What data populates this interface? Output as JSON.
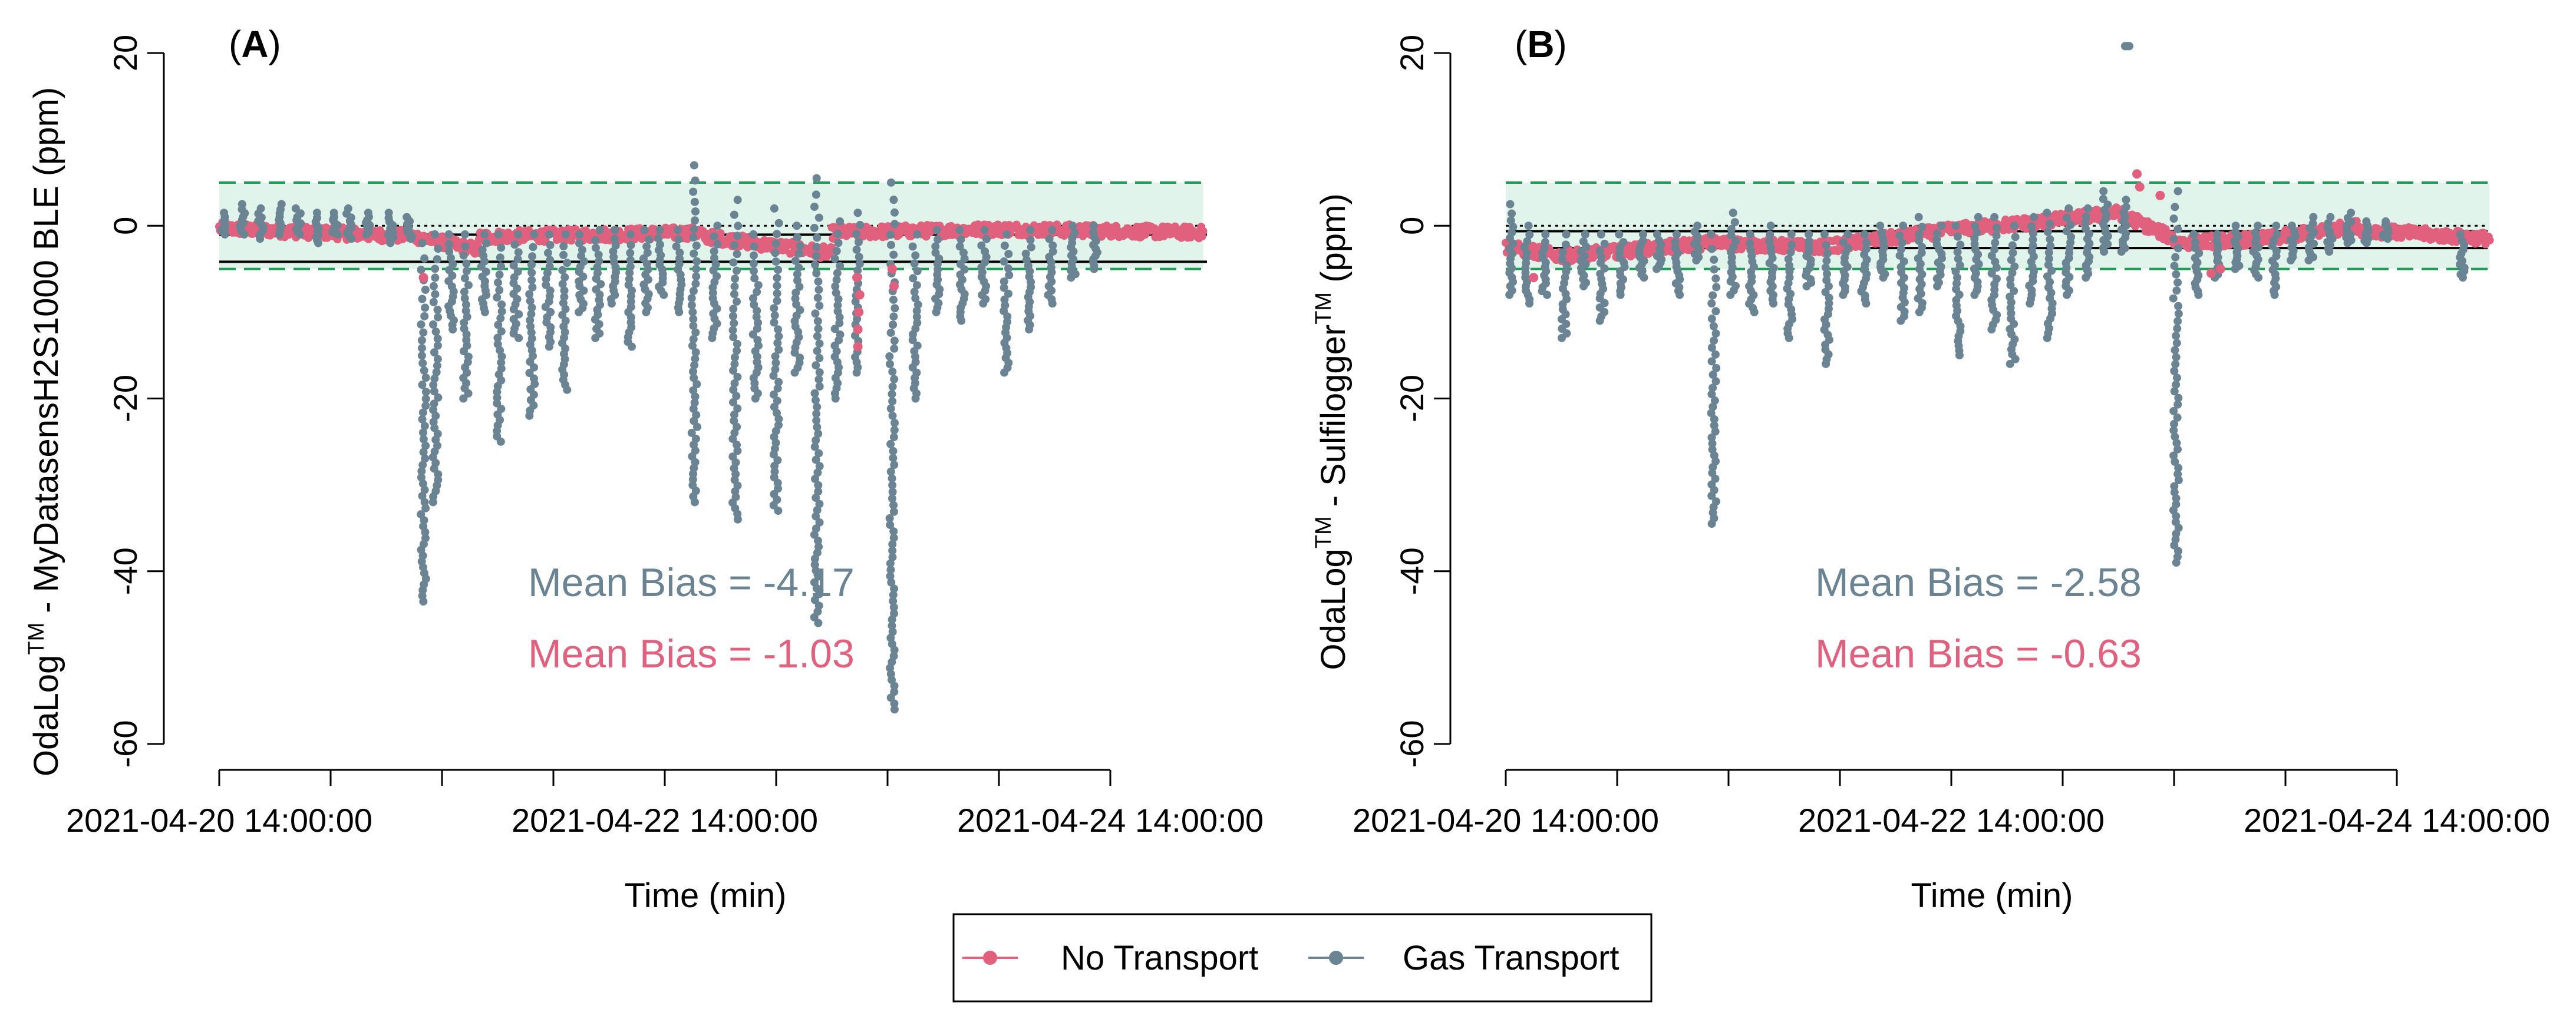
{
  "colors": {
    "no_transport": "#E0607E",
    "gas_transport": "#6B8493",
    "band_fill": "#E1F4EC",
    "band_line": "#1E9E55"
  },
  "legend": {
    "items": [
      {
        "label": "No Transport",
        "color": "#E0607E"
      },
      {
        "label": "Gas Transport",
        "color": "#6B8493"
      }
    ]
  },
  "chart_data": [
    {
      "type": "scatter",
      "panel_letter": "A",
      "ylabel_prefix": "OdaLog",
      "ylabel_sup": "TM",
      "ylabel_suffix": " - MyDatasensH2S1000 BLE (ppm)",
      "xlabel": "Time (min)",
      "x_range_hours": [
        0,
        96
      ],
      "x_ticks": [
        0,
        12,
        24,
        36,
        48,
        60,
        72,
        84,
        96
      ],
      "x_tick_labels": [
        {
          "at": 0,
          "text": "2021-04-20 14:00:00"
        },
        {
          "at": 48,
          "text": "2021-04-22 14:00:00"
        },
        {
          "at": 96,
          "text": "2021-04-24 14:00:00"
        }
      ],
      "ylim": [
        -60,
        20
      ],
      "y_ticks": [
        -60,
        -40,
        -20,
        0,
        20
      ],
      "data_range_hours": [
        0,
        106
      ],
      "band": [
        -5,
        5
      ],
      "zero_line": 0,
      "mean_lines": [
        -1.03,
        -4.17
      ],
      "annotations": [
        {
          "text": "Mean Bias = -4.17",
          "series": "gas_transport"
        },
        {
          "text": "Mean Bias = -1.03",
          "series": "no_transport"
        }
      ],
      "series": [
        {
          "name": "No Transport",
          "color_key": "no_transport",
          "segments": [
            {
              "x0": 0,
              "x1": 20,
              "y0": -0.3,
              "y1": -1.2
            },
            {
              "x0": 20,
              "x1": 28,
              "y0": -1.0,
              "y1": -2.8
            },
            {
              "x0": 28,
              "x1": 52,
              "y0": -1.3,
              "y1": -0.8
            },
            {
              "x0": 52,
              "x1": 66,
              "y0": -1.2,
              "y1": -3.2
            },
            {
              "x0": 66,
              "x1": 85,
              "y0": -0.8,
              "y1": -0.4
            },
            {
              "x0": 85,
              "x1": 106,
              "y0": -0.4,
              "y1": -0.8
            }
          ],
          "points": [
            {
              "x": 68.8,
              "y": -14
            },
            {
              "x": 68.8,
              "y": -12
            },
            {
              "x": 68.9,
              "y": -10
            },
            {
              "x": 69.0,
              "y": -8
            },
            {
              "x": 68.7,
              "y": -6
            },
            {
              "x": 72.5,
              "y": -5
            },
            {
              "x": 72.7,
              "y": -7
            },
            {
              "x": 22.0,
              "y": -6
            }
          ]
        },
        {
          "name": "Gas Transport",
          "color_key": "gas_transport",
          "clusters": [
            {
              "x": 0.5,
              "min": -1,
              "max": 1.5
            },
            {
              "x": 2.5,
              "min": -1,
              "max": 2.5
            },
            {
              "x": 4.5,
              "min": -1.5,
              "max": 2
            },
            {
              "x": 6.5,
              "min": -1,
              "max": 2.5
            },
            {
              "x": 8.5,
              "min": -1,
              "max": 2
            },
            {
              "x": 10.5,
              "min": -2,
              "max": 1.5
            },
            {
              "x": 12.5,
              "min": -1,
              "max": 1.5
            },
            {
              "x": 14,
              "min": -1.5,
              "max": 2
            },
            {
              "x": 16,
              "min": -1,
              "max": 1.5
            },
            {
              "x": 18.5,
              "min": -2,
              "max": 1.5
            },
            {
              "x": 20.5,
              "min": -1.5,
              "max": 1
            },
            {
              "x": 22,
              "min": -43.5,
              "max": -2
            },
            {
              "x": 23.3,
              "min": -32,
              "max": -1
            },
            {
              "x": 25,
              "min": -12,
              "max": -1
            },
            {
              "x": 26.6,
              "min": -20,
              "max": -1
            },
            {
              "x": 28.5,
              "min": -10,
              "max": -1
            },
            {
              "x": 30.2,
              "min": -25,
              "max": -1
            },
            {
              "x": 32,
              "min": -13,
              "max": -1
            },
            {
              "x": 33.7,
              "min": -22,
              "max": -1
            },
            {
              "x": 35.4,
              "min": -14,
              "max": -1
            },
            {
              "x": 37.2,
              "min": -19,
              "max": -1
            },
            {
              "x": 39,
              "min": -10,
              "max": -1
            },
            {
              "x": 40.8,
              "min": -13,
              "max": -0.5
            },
            {
              "x": 42.5,
              "min": -9,
              "max": -0.5
            },
            {
              "x": 44.2,
              "min": -14,
              "max": -1
            },
            {
              "x": 46,
              "min": -10,
              "max": -0.5
            },
            {
              "x": 47.6,
              "min": -8,
              "max": -0.5
            },
            {
              "x": 49.5,
              "min": -10,
              "max": -0.5
            },
            {
              "x": 51.2,
              "min": -32,
              "max": 7
            },
            {
              "x": 53.4,
              "min": -13,
              "max": 0
            },
            {
              "x": 55.6,
              "min": -34,
              "max": 3
            },
            {
              "x": 57.8,
              "min": -20,
              "max": -1
            },
            {
              "x": 60,
              "min": -33,
              "max": 2
            },
            {
              "x": 62.3,
              "min": -17,
              "max": 0
            },
            {
              "x": 64.4,
              "min": -46,
              "max": 5.5
            },
            {
              "x": 66.6,
              "min": -20,
              "max": 0.5
            },
            {
              "x": 68.8,
              "min": -17,
              "max": 1.5
            },
            {
              "x": 72.5,
              "min": -56,
              "max": 5
            },
            {
              "x": 75,
              "min": -20,
              "max": -1
            },
            {
              "x": 77.4,
              "min": -10,
              "max": -0.5
            },
            {
              "x": 80,
              "min": -11,
              "max": -0.5
            },
            {
              "x": 82.4,
              "min": -9,
              "max": -0.5
            },
            {
              "x": 84.8,
              "min": -17,
              "max": -1
            },
            {
              "x": 87.2,
              "min": -12,
              "max": -0.5
            },
            {
              "x": 89.6,
              "min": -9,
              "max": -0.5
            },
            {
              "x": 92,
              "min": -6,
              "max": 0
            },
            {
              "x": 94.4,
              "min": -5,
              "max": 0
            }
          ]
        }
      ]
    },
    {
      "type": "scatter",
      "panel_letter": "B",
      "ylabel_prefix": "OdaLog",
      "ylabel_sup": "TM",
      "ylabel_suffix": " - Sulfilogger",
      "ylabel_sup2": "TM",
      "ylabel_suffix2": " (ppm)",
      "xlabel": "Time (min)",
      "x_range_hours": [
        0,
        96
      ],
      "x_ticks": [
        0,
        12,
        24,
        36,
        48,
        60,
        72,
        84,
        96
      ],
      "x_tick_labels": [
        {
          "at": 0,
          "text": "2021-04-20 14:00:00"
        },
        {
          "at": 48,
          "text": "2021-04-22 14:00:00"
        },
        {
          "at": 96,
          "text": "2021-04-24 14:00:00"
        }
      ],
      "ylim": [
        -60,
        20
      ],
      "y_ticks": [
        -60,
        -40,
        -20,
        0,
        20
      ],
      "data_range_hours": [
        0,
        106
      ],
      "band": [
        -5,
        5
      ],
      "zero_line": 0,
      "mean_lines": [
        -0.63,
        -2.58
      ],
      "annotations": [
        {
          "text": "Mean Bias = -2.58",
          "series": "gas_transport"
        },
        {
          "text": "Mean Bias = -0.63",
          "series": "no_transport"
        }
      ],
      "series": [
        {
          "name": "No Transport",
          "color_key": "no_transport",
          "segments": [
            {
              "x0": 0,
              "x1": 6,
              "y0": -2.5,
              "y1": -3.5
            },
            {
              "x0": 6,
              "x1": 12,
              "y0": -3.5,
              "y1": -3
            },
            {
              "x0": 12,
              "x1": 22,
              "y0": -3,
              "y1": -2
            },
            {
              "x0": 22,
              "x1": 34,
              "y0": -2,
              "y1": -2.5
            },
            {
              "x0": 34,
              "x1": 48,
              "y0": -2.5,
              "y1": -0.5
            },
            {
              "x0": 48,
              "x1": 58,
              "y0": -0.5,
              "y1": 0.5
            },
            {
              "x0": 58,
              "x1": 66,
              "y0": 0.5,
              "y1": 1.5
            },
            {
              "x0": 66,
              "x1": 72,
              "y0": 1.5,
              "y1": -1.5
            },
            {
              "x0": 72,
              "x1": 82,
              "y0": -2,
              "y1": -1.5
            },
            {
              "x0": 82,
              "x1": 92,
              "y0": -1.5,
              "y1": 0
            },
            {
              "x0": 92,
              "x1": 106,
              "y0": -0.5,
              "y1": -1.5
            }
          ],
          "points": [
            {
              "x": 68,
              "y": 6
            },
            {
              "x": 68.3,
              "y": 4.5
            },
            {
              "x": 70.5,
              "y": 3.5
            },
            {
              "x": 76,
              "y": -5.5
            },
            {
              "x": 77,
              "y": -5
            },
            {
              "x": 3,
              "y": -6
            }
          ]
        },
        {
          "name": "Gas Transport",
          "color_key": "gas_transport",
          "clusters": [
            {
              "x": 0.5,
              "min": -8,
              "max": 2.5
            },
            {
              "x": 2.3,
              "min": -9,
              "max": 0
            },
            {
              "x": 4.2,
              "min": -8,
              "max": -1
            },
            {
              "x": 6.3,
              "min": -13,
              "max": -1
            },
            {
              "x": 8.4,
              "min": -7,
              "max": -1
            },
            {
              "x": 10.4,
              "min": -11,
              "max": -1
            },
            {
              "x": 12.5,
              "min": -8,
              "max": -1
            },
            {
              "x": 14.6,
              "min": -6,
              "max": -1
            },
            {
              "x": 16.5,
              "min": -5,
              "max": -1
            },
            {
              "x": 18.5,
              "min": -8,
              "max": -1
            },
            {
              "x": 20.5,
              "min": -4,
              "max": 0
            },
            {
              "x": 22.4,
              "min": -34.5,
              "max": -1
            },
            {
              "x": 24.5,
              "min": -8,
              "max": 1.5
            },
            {
              "x": 26.5,
              "min": -10,
              "max": -1
            },
            {
              "x": 28.6,
              "min": -9,
              "max": 0
            },
            {
              "x": 30.6,
              "min": -13,
              "max": -1
            },
            {
              "x": 32.6,
              "min": -7,
              "max": -1
            },
            {
              "x": 34.6,
              "min": -16,
              "max": -1
            },
            {
              "x": 36.6,
              "min": -8,
              "max": -1
            },
            {
              "x": 38.6,
              "min": -9,
              "max": -1
            },
            {
              "x": 40.6,
              "min": -6,
              "max": 0
            },
            {
              "x": 42.7,
              "min": -11,
              "max": 0
            },
            {
              "x": 44.7,
              "min": -10,
              "max": 1
            },
            {
              "x": 46.7,
              "min": -7,
              "max": 0
            },
            {
              "x": 48.7,
              "min": -15,
              "max": 0
            },
            {
              "x": 50.7,
              "min": -8,
              "max": 1
            },
            {
              "x": 52.6,
              "min": -12,
              "max": 1
            },
            {
              "x": 54.6,
              "min": -16,
              "max": 0
            },
            {
              "x": 56.6,
              "min": -9,
              "max": 1
            },
            {
              "x": 58.6,
              "min": -13,
              "max": 1.5
            },
            {
              "x": 60.6,
              "min": -8,
              "max": 2
            },
            {
              "x": 62.6,
              "min": -6,
              "max": 2
            },
            {
              "x": 64.6,
              "min": -3,
              "max": 4
            },
            {
              "x": 66.6,
              "min": -3,
              "max": 3
            },
            {
              "x": 67.0,
              "min": 20.8,
              "max": 20.8
            },
            {
              "x": 72.2,
              "min": -39,
              "max": 4
            },
            {
              "x": 74.4,
              "min": -8,
              "max": -1
            },
            {
              "x": 76.6,
              "min": -6,
              "max": -1
            },
            {
              "x": 78.8,
              "min": -5,
              "max": 0
            },
            {
              "x": 80.8,
              "min": -6,
              "max": 0
            },
            {
              "x": 82.8,
              "min": -8,
              "max": 0
            },
            {
              "x": 84.8,
              "min": -4,
              "max": 0
            },
            {
              "x": 86.8,
              "min": -4,
              "max": 1
            },
            {
              "x": 88.8,
              "min": -3,
              "max": 1
            },
            {
              "x": 90.8,
              "min": -2,
              "max": 1.5
            },
            {
              "x": 92.8,
              "min": -2,
              "max": 0.5
            },
            {
              "x": 94.8,
              "min": -1.5,
              "max": 0.5
            },
            {
              "x": 103,
              "min": -6,
              "max": -1
            }
          ]
        }
      ]
    }
  ]
}
